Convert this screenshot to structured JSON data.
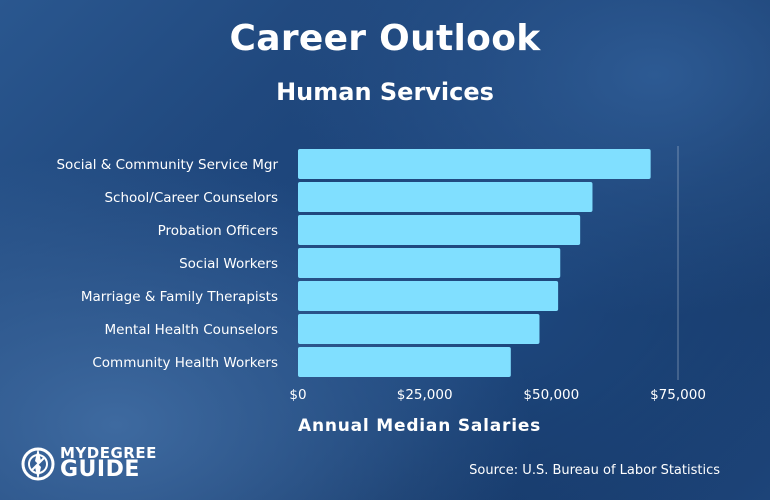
{
  "header": {
    "title": "Career Outlook",
    "subtitle": "Human Services"
  },
  "chart_data": {
    "type": "bar",
    "orientation": "horizontal",
    "title": "Career Outlook",
    "subtitle": "Human Services",
    "xlabel": "Annual Median Salaries",
    "ylabel": "",
    "categories": [
      "Social & Community Service Mgr",
      "School/Career Counselors",
      "Probation Officers",
      "Social Workers",
      "Marriage &  Family Therapists",
      "Mental Health Counselors",
      "Community Health Workers"
    ],
    "values": [
      69600,
      58120,
      55690,
      51760,
      51340,
      47660,
      42000
    ],
    "xlim": [
      0,
      75000
    ],
    "xticks": [
      0,
      25000,
      50000,
      75000
    ],
    "xtick_labels": [
      "$0",
      "$25,000",
      "$50,000",
      "$75,000"
    ],
    "grid": "vertical line at $75,000",
    "bar_color": "#80dfff"
  },
  "footer": {
    "source": "Source: U.S. Bureau of Labor Statistics",
    "logo_top": "MYDEGREE",
    "logo_bottom": "GUIDE"
  }
}
